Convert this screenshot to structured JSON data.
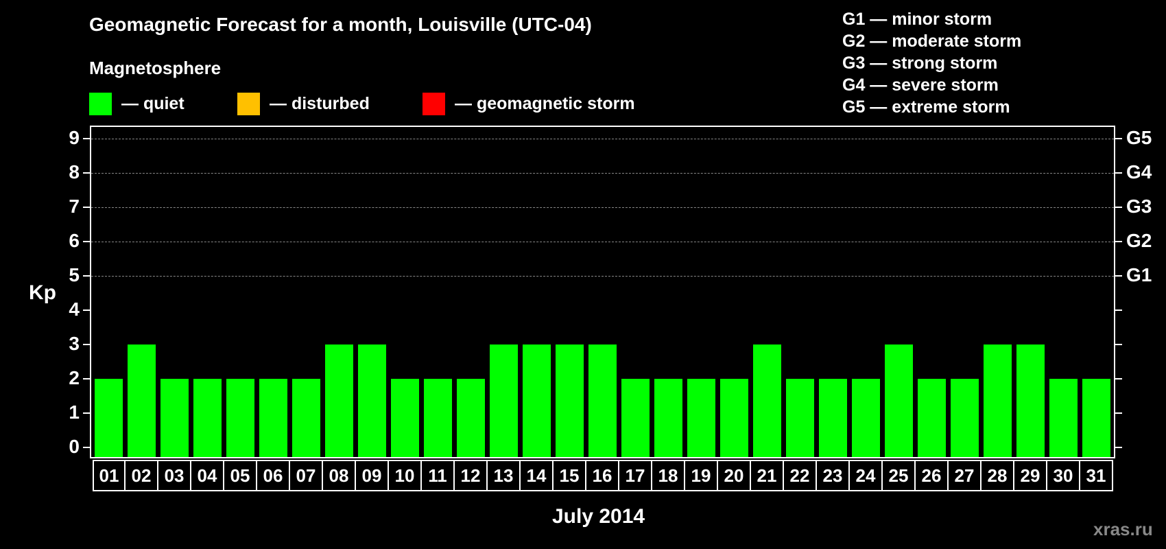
{
  "header": {
    "title": "Geomagnetic Forecast for a month, Louisville (UTC-04)",
    "subtitle": "Magnetosphere"
  },
  "legend": [
    {
      "label": "— quiet",
      "color": "#00ff00"
    },
    {
      "label": "— disturbed",
      "color": "#ffc000"
    },
    {
      "label": "— geomagnetic storm",
      "color": "#ff0000"
    }
  ],
  "g_legend": [
    "G1 — minor storm",
    "G2 — moderate storm",
    "G3 — strong storm",
    "G4 — severe storm",
    "G5 — extreme storm"
  ],
  "axis": {
    "ylabel": "Kp",
    "xlabel": "July 2014",
    "yticks": [
      "0",
      "1",
      "2",
      "3",
      "4",
      "5",
      "6",
      "7",
      "8",
      "9"
    ],
    "right_ticks": [
      {
        "kp": 5,
        "label": "G1"
      },
      {
        "kp": 6,
        "label": "G2"
      },
      {
        "kp": 7,
        "label": "G3"
      },
      {
        "kp": 8,
        "label": "G4"
      },
      {
        "kp": 9,
        "label": "G5"
      }
    ]
  },
  "watermark": "xras.ru",
  "colors": {
    "quiet": "#00ff00",
    "disturbed": "#ffc000",
    "storm": "#ff0000",
    "grid": "#888888"
  },
  "chart_data": {
    "type": "bar",
    "title": "Geomagnetic Forecast for a month, Louisville (UTC-04)",
    "xlabel": "July 2014",
    "ylabel": "Kp",
    "ylim": [
      0,
      9
    ],
    "grid": "dashed horizontal lines at Kp 5-9",
    "legend_position": "top",
    "categories": [
      "01",
      "02",
      "03",
      "04",
      "05",
      "06",
      "07",
      "08",
      "09",
      "10",
      "11",
      "12",
      "13",
      "14",
      "15",
      "16",
      "17",
      "18",
      "19",
      "20",
      "21",
      "22",
      "23",
      "24",
      "25",
      "26",
      "27",
      "28",
      "29",
      "30",
      "31"
    ],
    "values": [
      2,
      3,
      2,
      2,
      2,
      2,
      2,
      3,
      3,
      2,
      2,
      2,
      3,
      3,
      3,
      3,
      2,
      2,
      2,
      2,
      3,
      2,
      2,
      2,
      3,
      2,
      2,
      3,
      3,
      2,
      2
    ],
    "series": [
      {
        "name": "quiet",
        "color": "#00ff00",
        "values": [
          2,
          3,
          2,
          2,
          2,
          2,
          2,
          3,
          3,
          2,
          2,
          2,
          3,
          3,
          3,
          3,
          2,
          2,
          2,
          2,
          3,
          2,
          2,
          2,
          3,
          2,
          2,
          3,
          3,
          2,
          2
        ]
      }
    ],
    "right_axis_labels": {
      "5": "G1",
      "6": "G2",
      "7": "G3",
      "8": "G4",
      "9": "G5"
    }
  }
}
